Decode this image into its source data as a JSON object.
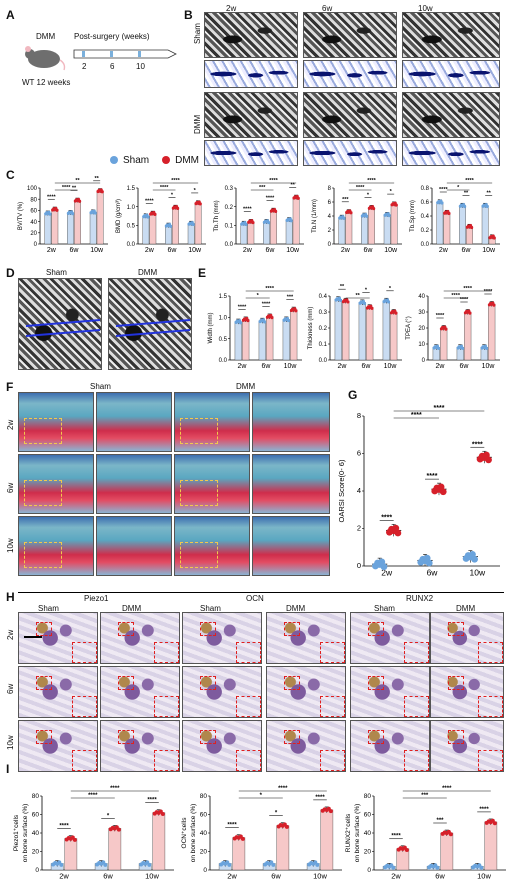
{
  "panels": {
    "A": "A",
    "B": "B",
    "C": "C",
    "D": "D",
    "E": "E",
    "F": "F",
    "G": "G",
    "H": "H",
    "I": "I"
  },
  "panel_a": {
    "model": "DMM",
    "age": "WT 12 weeks",
    "timeline_title": "Post-surgery (weeks)",
    "ticks": [
      "2",
      "6",
      "10"
    ]
  },
  "panel_b": {
    "timepoints": [
      "2w",
      "6w",
      "10w"
    ],
    "groups": [
      "Sham",
      "DMM"
    ]
  },
  "legend": {
    "sham": "Sham",
    "dmm": "DMM"
  },
  "colors": {
    "sham": "#6aa3dc",
    "dmm": "#d6202a",
    "sham_bar": "#c9dcf2",
    "dmm_bar": "#f6c8c8",
    "axis": "#000"
  },
  "panel_d": {
    "sham": "Sham",
    "dmm": "DMM"
  },
  "panel_f": {
    "sham": "Sham",
    "dmm": "DMM",
    "rows": [
      "2w",
      "6w",
      "10w"
    ]
  },
  "panel_h": {
    "markers": [
      "Piezo1",
      "OCN",
      "RUNX2"
    ],
    "groups": [
      "Sham",
      "DMM"
    ],
    "rows": [
      "2w",
      "6w",
      "10w"
    ]
  },
  "chart_data": [
    {
      "id": "C1",
      "type": "bar",
      "ylabel": "BV/TV (%)",
      "yticks": [
        "0",
        "20",
        "40",
        "60",
        "80",
        "100"
      ],
      "ylim": [
        0,
        100
      ],
      "categories": [
        "2w",
        "6w",
        "10w"
      ],
      "series": [
        {
          "name": "Sham",
          "values": [
            55,
            56,
            57
          ]
        },
        {
          "name": "DMM",
          "values": [
            62,
            78,
            95
          ]
        }
      ],
      "sig": [
        {
          "text": "****"
        },
        {
          "text": "**"
        },
        {
          "text": "**"
        },
        {
          "text": "****"
        },
        {
          "text": "**"
        }
      ]
    },
    {
      "id": "C2",
      "type": "bar",
      "ylabel": "BMD (g/cm³)",
      "yticks": [
        "0.0",
        "0.5",
        "1.0",
        "1.5"
      ],
      "ylim": [
        0,
        1.5
      ],
      "categories": [
        "2w",
        "6w",
        "10w"
      ],
      "series": [
        {
          "name": "Sham",
          "values": [
            0.75,
            0.5,
            0.55
          ]
        },
        {
          "name": "DMM",
          "values": [
            0.82,
            0.98,
            1.1
          ]
        }
      ],
      "sig": [
        {
          "text": "****"
        },
        {
          "text": "*"
        },
        {
          "text": "*"
        },
        {
          "text": "****"
        },
        {
          "text": "****"
        }
      ]
    },
    {
      "id": "C3",
      "type": "bar",
      "ylabel": "Tb.Th (mm)",
      "yticks": [
        "0.0",
        "0.1",
        "0.2",
        "0.3"
      ],
      "ylim": [
        0,
        0.3
      ],
      "categories": [
        "2w",
        "6w",
        "10w"
      ],
      "series": [
        {
          "name": "Sham",
          "values": [
            0.11,
            0.12,
            0.13
          ]
        },
        {
          "name": "DMM",
          "values": [
            0.12,
            0.18,
            0.25
          ]
        }
      ],
      "sig": [
        {
          "text": "****"
        },
        {
          "text": "****"
        },
        {
          "text": "**"
        },
        {
          "text": "***"
        },
        {
          "text": "****"
        }
      ]
    },
    {
      "id": "C4",
      "type": "bar",
      "ylabel": "Tb.N (1/mm)",
      "yticks": [
        "0",
        "2",
        "4",
        "6",
        "8"
      ],
      "ylim": [
        0,
        8
      ],
      "categories": [
        "2w",
        "6w",
        "10w"
      ],
      "series": [
        {
          "name": "Sham",
          "values": [
            3.8,
            4.1,
            4.2
          ]
        },
        {
          "name": "DMM",
          "values": [
            4.6,
            5.2,
            5.7
          ]
        }
      ],
      "sig": [
        {
          "text": "***"
        },
        {
          "text": "*"
        },
        {
          "text": "*"
        },
        {
          "text": "****"
        },
        {
          "text": "****"
        }
      ]
    },
    {
      "id": "C5",
      "type": "bar",
      "ylabel": "Tb.Sp (mm)",
      "yticks": [
        "0.0",
        "0.2",
        "0.4",
        "0.6",
        "0.8"
      ],
      "ylim": [
        0,
        0.8
      ],
      "categories": [
        "2w",
        "6w",
        "10w"
      ],
      "series": [
        {
          "name": "Sham",
          "values": [
            0.6,
            0.55,
            0.55
          ]
        },
        {
          "name": "DMM",
          "values": [
            0.45,
            0.25,
            0.1
          ]
        }
      ],
      "sig": [
        {
          "text": "****"
        },
        {
          "text": "**"
        },
        {
          "text": "**"
        },
        {
          "text": "*"
        },
        {
          "text": "****"
        }
      ]
    },
    {
      "id": "E1",
      "type": "bar",
      "ylabel": "Width (mm)",
      "yticks": [
        "0.0",
        "0.5",
        "1.0",
        "1.5"
      ],
      "ylim": [
        0,
        1.5
      ],
      "categories": [
        "2w",
        "6w",
        "10w"
      ],
      "series": [
        {
          "name": "Sham",
          "values": [
            0.9,
            0.92,
            0.95
          ]
        },
        {
          "name": "DMM",
          "values": [
            0.95,
            1.02,
            1.18
          ]
        }
      ],
      "sig": [
        {
          "text": "****"
        },
        {
          "text": "****"
        },
        {
          "text": "***"
        },
        {
          "text": "*"
        },
        {
          "text": "****"
        }
      ]
    },
    {
      "id": "E2",
      "type": "bar",
      "ylabel": "Thickness (mm)",
      "yticks": [
        "0.0",
        "0.1",
        "0.2",
        "0.3",
        "0.4"
      ],
      "ylim": [
        0,
        0.4
      ],
      "categories": [
        "2w",
        "6w",
        "10w"
      ],
      "series": [
        {
          "name": "Sham",
          "values": [
            0.38,
            0.36,
            0.37
          ]
        },
        {
          "name": "DMM",
          "values": [
            0.37,
            0.33,
            0.3
          ]
        }
      ],
      "sig": [
        {
          "text": "**"
        },
        {
          "text": "*"
        },
        {
          "text": "*"
        },
        {
          "text": "**"
        }
      ]
    },
    {
      "id": "E3",
      "type": "bar",
      "ylabel": "TPEA (°)",
      "yticks": [
        "0",
        "10",
        "20",
        "30",
        "40"
      ],
      "ylim": [
        0,
        40
      ],
      "categories": [
        "2w",
        "6w",
        "10w"
      ],
      "series": [
        {
          "name": "Sham",
          "values": [
            8,
            8,
            8
          ]
        },
        {
          "name": "DMM",
          "values": [
            20,
            30,
            35
          ]
        }
      ],
      "sig": [
        {
          "text": "****"
        },
        {
          "text": "****"
        },
        {
          "text": "****"
        },
        {
          "text": "****"
        },
        {
          "text": "****"
        }
      ]
    },
    {
      "id": "G",
      "type": "scatter",
      "ylabel": "OARSI Score(0- 6)",
      "yticks": [
        "0",
        "2",
        "4",
        "6",
        "8"
      ],
      "ylim": [
        0,
        8
      ],
      "categories": [
        "2w",
        "6w",
        "10w"
      ],
      "series": [
        {
          "name": "Sham",
          "values": [
            0.1,
            0.3,
            0.5
          ]
        },
        {
          "name": "DMM",
          "values": [
            1.9,
            4.1,
            5.8
          ]
        }
      ],
      "sig": [
        {
          "text": "****"
        },
        {
          "text": "****"
        },
        {
          "text": "****"
        },
        {
          "text": "****"
        },
        {
          "text": "****"
        }
      ]
    },
    {
      "id": "I1",
      "type": "bar",
      "ylabel": "Piezo1+cells on bone surface (%)",
      "yl1": "Piezo1⁺cells",
      "yl2": "on bone surface (%)",
      "yticks": [
        "0",
        "20",
        "40",
        "60",
        "80"
      ],
      "ylim": [
        0,
        80
      ],
      "categories": [
        "2w",
        "6w",
        "10w"
      ],
      "series": [
        {
          "name": "Sham",
          "values": [
            7,
            7,
            7
          ]
        },
        {
          "name": "DMM",
          "values": [
            34,
            45,
            62
          ]
        }
      ],
      "sig": [
        {
          "text": "****"
        },
        {
          "text": "*"
        },
        {
          "text": "****"
        },
        {
          "text": "****"
        },
        {
          "text": "****"
        }
      ]
    },
    {
      "id": "I2",
      "type": "bar",
      "ylabel": "OCN+cells on bone surface (%)",
      "yl1": "OCN⁺cells",
      "yl2": "on bone surface (%)",
      "yticks": [
        "0",
        "20",
        "40",
        "60",
        "80"
      ],
      "ylim": [
        0,
        80
      ],
      "categories": [
        "2w",
        "6w",
        "10w"
      ],
      "series": [
        {
          "name": "Sham",
          "values": [
            7,
            7,
            7
          ]
        },
        {
          "name": "DMM",
          "values": [
            35,
            48,
            65
          ]
        }
      ],
      "sig": [
        {
          "text": "****"
        },
        {
          "text": "*"
        },
        {
          "text": "****"
        },
        {
          "text": "*"
        },
        {
          "text": "****"
        }
      ]
    },
    {
      "id": "I3",
      "type": "bar",
      "ylabel": "RUNX2+cells on bone surface (%)",
      "yl1": "RUNX2⁺cells",
      "yl2": "on bone surface (%)",
      "yticks": [
        "0",
        "20",
        "40",
        "60",
        "80"
      ],
      "ylim": [
        0,
        80
      ],
      "categories": [
        "2w",
        "6w",
        "10w"
      ],
      "series": [
        {
          "name": "Sham",
          "values": [
            4,
            4,
            4
          ]
        },
        {
          "name": "DMM",
          "values": [
            23,
            40,
            52
          ]
        }
      ],
      "sig": [
        {
          "text": "****"
        },
        {
          "text": "***"
        },
        {
          "text": "****"
        },
        {
          "text": "***"
        },
        {
          "text": "****"
        }
      ]
    }
  ]
}
